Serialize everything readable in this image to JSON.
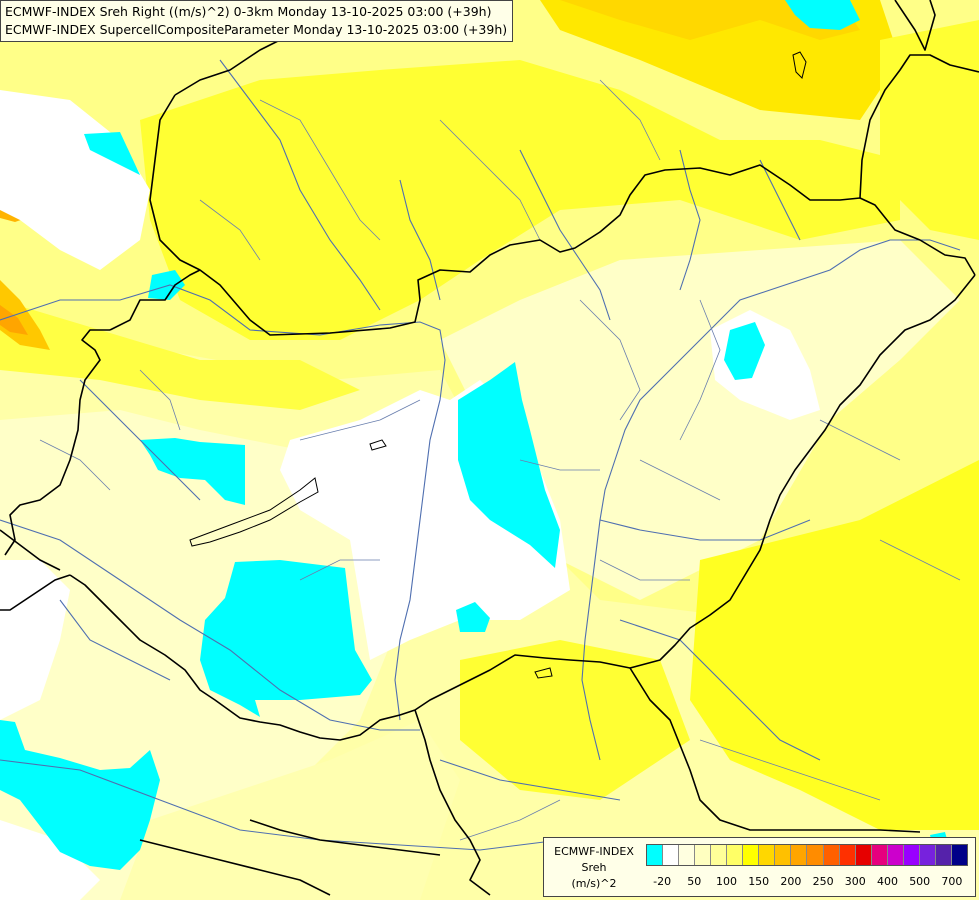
{
  "title": {
    "line1": "ECMWF-INDEX Sreh Right ((m/s)^2) 0-3km Monday 13-10-2025 03:00 (+39h)",
    "line2": "ECMWF-INDEX SupercellCompositeParameter Monday 13-10-2025 03:00 (+39h)"
  },
  "legend": {
    "line1": "ECMWF-INDEX",
    "line2": "Sreh",
    "line3": "(m/s)^2",
    "ticks": [
      "-20",
      "50",
      "100",
      "150",
      "200",
      "250",
      "300",
      "400",
      "500",
      "700"
    ],
    "colors": [
      "#00ffff",
      "#ffffff",
      "#ffffe0",
      "#ffffc0",
      "#ffff99",
      "#ffff66",
      "#ffff00",
      "#ffd700",
      "#ffc000",
      "#ffa500",
      "#ff8c00",
      "#ff6000",
      "#ff3000",
      "#e60000",
      "#e6007e",
      "#cc00cc",
      "#9900ff",
      "#7722dd",
      "#5522aa",
      "#000088"
    ]
  },
  "colors": {
    "cyan": "#00ffff",
    "white": "#ffffff",
    "pale_yellow": "#ffffc0",
    "light_yellow": "#ffff99",
    "yellow": "#ffff66",
    "deep_yellow": "#ffff00",
    "gold": "#ffd700",
    "orange": "#ffa500",
    "border": "#000000",
    "river": "#4f6fb0",
    "region_line": "#6a7fae"
  }
}
